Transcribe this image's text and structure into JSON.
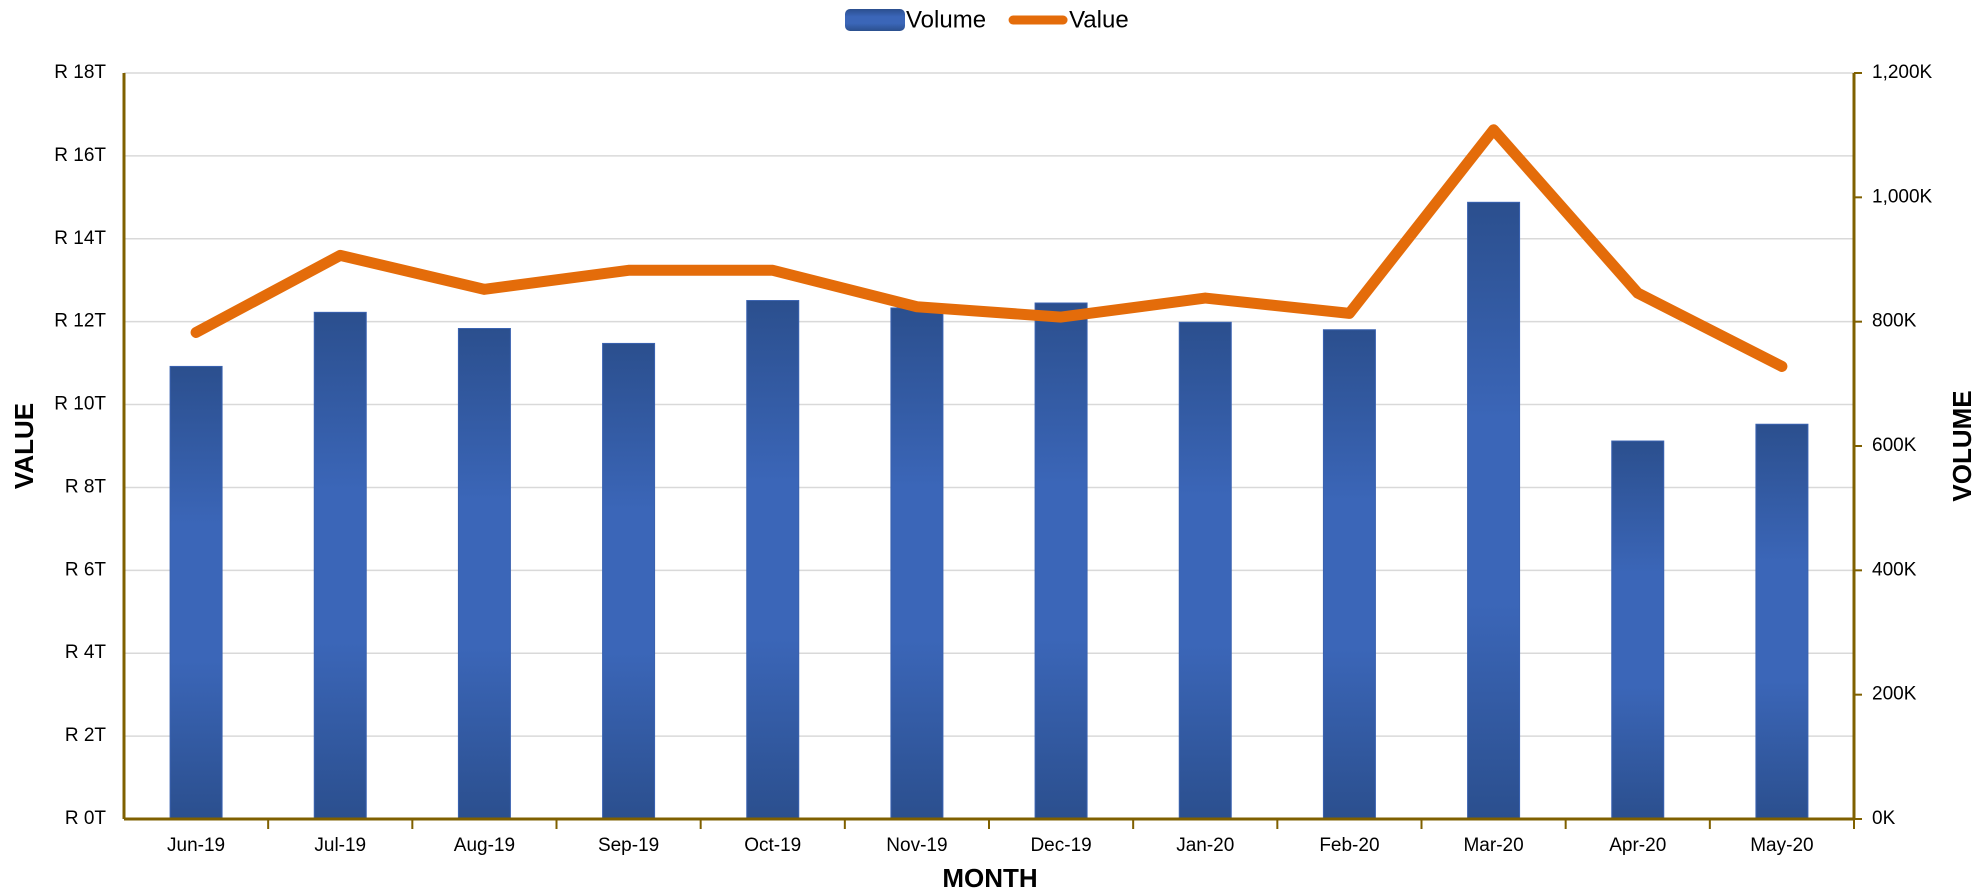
{
  "chart_data": {
    "type": "bar-line",
    "x_label": "MONTH",
    "y_label": "VALUE",
    "y2_label": "VOLUME",
    "categories": [
      "Jun-19",
      "Jul-19",
      "Aug-19",
      "Sep-19",
      "Oct-19",
      "Nov-19",
      "Dec-19",
      "Jan-20",
      "Feb-20",
      "Mar-20",
      "Apr-20",
      "May-20"
    ],
    "series": [
      {
        "name": "Volume",
        "type": "bar",
        "axis": "y2",
        "color": "#3a62b0",
        "values": [
          728,
          815,
          789,
          765,
          834,
          822,
          830,
          799,
          787,
          992,
          608,
          635
        ]
      },
      {
        "name": "Value",
        "type": "line",
        "axis": "y",
        "color": "#e46c0a",
        "values": [
          11.74,
          13.6,
          12.78,
          13.24,
          13.24,
          12.36,
          12.11,
          12.57,
          12.2,
          16.63,
          12.69,
          10.92
        ]
      }
    ],
    "ylim": [
      0,
      18
    ],
    "yticks": [
      {
        "value": 0,
        "label": "R 0T"
      },
      {
        "value": 2,
        "label": "R 2T"
      },
      {
        "value": 4,
        "label": "R 4T"
      },
      {
        "value": 6,
        "label": "R 6T"
      },
      {
        "value": 8,
        "label": "R 8T"
      },
      {
        "value": 10,
        "label": "R 10T"
      },
      {
        "value": 12,
        "label": "R 12T"
      },
      {
        "value": 14,
        "label": "R 14T"
      },
      {
        "value": 16,
        "label": "R 16T"
      },
      {
        "value": 18,
        "label": "R 18T"
      }
    ],
    "y2lim": [
      0,
      1200
    ],
    "y2ticks": [
      {
        "value": 0,
        "label": "0K"
      },
      {
        "value": 200,
        "label": "200K"
      },
      {
        "value": 400,
        "label": "400K"
      },
      {
        "value": 600,
        "label": "600K"
      },
      {
        "value": 800,
        "label": "800K"
      },
      {
        "value": 1000,
        "label": "1,000K"
      },
      {
        "value": 1200,
        "label": "1,200K"
      }
    ],
    "grid": true,
    "legend": "top"
  }
}
